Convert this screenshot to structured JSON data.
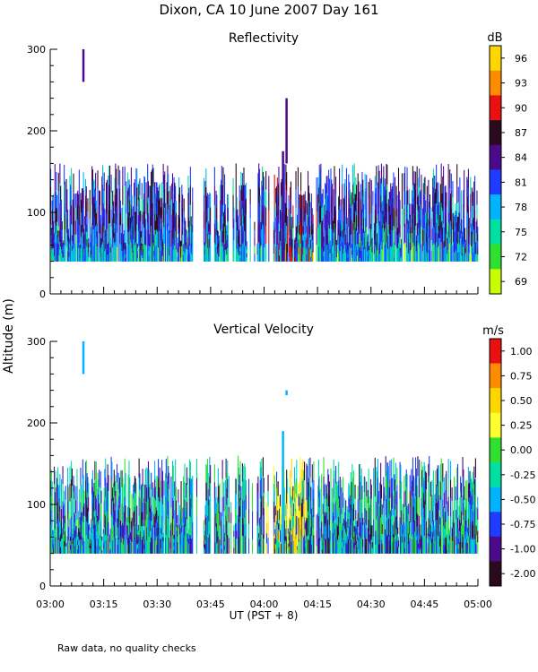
{
  "title": "Dixon, CA 10 June 2007  Day 161",
  "y_axis_label": "Altitude (m)",
  "footnote": "Raw data, no quality checks",
  "chart_data": [
    {
      "type": "heatmap",
      "title": "Reflectivity",
      "xlabel": "UT  (PST + 8)",
      "ylabel": "Altitude (m)",
      "x_ticks": [
        "03:00",
        "03:15",
        "03:30",
        "03:45",
        "04:00",
        "04:15",
        "04:30",
        "04:45",
        "05:00"
      ],
      "y_ticks": [
        0,
        100,
        200,
        300
      ],
      "ylim": [
        0,
        300
      ],
      "colorbar_unit": "dB",
      "colorbar_ticks": [
        "96",
        "93",
        "90",
        "87",
        "84",
        "81",
        "78",
        "75",
        "72",
        "69"
      ],
      "colorbar_colors": [
        "#FFD700",
        "#FF8C00",
        "#E81010",
        "#2A0A1C",
        "#4B0A8C",
        "#1E3CFF",
        "#00B4FF",
        "#00E0A0",
        "#30E030",
        "#C8FF00"
      ],
      "echo_base_m": 40,
      "typical_top_m": [
        120,
        160
      ],
      "spikes": [
        {
          "time": "03:09",
          "altitude_m": [
            260,
            300
          ]
        },
        {
          "time": "04:05",
          "altitude_m": [
            40,
            175
          ]
        },
        {
          "time": "04:06",
          "altitude_m": [
            160,
            240
          ]
        }
      ]
    },
    {
      "type": "heatmap",
      "title": "Vertical Velocity",
      "xlabel": "UT  (PST + 8)",
      "ylabel": "Altitude (m)",
      "x_ticks": [
        "03:00",
        "03:15",
        "03:30",
        "03:45",
        "04:00",
        "04:15",
        "04:30",
        "04:45",
        "05:00"
      ],
      "y_ticks": [
        0,
        100,
        200,
        300
      ],
      "ylim": [
        0,
        300
      ],
      "colorbar_unit": "m/s",
      "colorbar_ticks": [
        "1.00",
        "0.75",
        "0.50",
        "0.25",
        "0.00",
        "-0.25",
        "-0.50",
        "-0.75",
        "-1.00",
        "-2.00"
      ],
      "colorbar_colors": [
        "#E81010",
        "#FF8C00",
        "#FFD700",
        "#FFFF30",
        "#30E030",
        "#00E0A0",
        "#00B4FF",
        "#1E3CFF",
        "#4B0A8C",
        "#2A0A1C"
      ],
      "echo_base_m": 40,
      "typical_top_m": [
        120,
        160
      ],
      "spikes": [
        {
          "time": "03:09",
          "altitude_m": [
            260,
            300
          ]
        },
        {
          "time": "04:05",
          "altitude_m": [
            40,
            190
          ]
        },
        {
          "time": "04:06",
          "altitude_m": [
            234,
            240
          ]
        }
      ]
    }
  ]
}
